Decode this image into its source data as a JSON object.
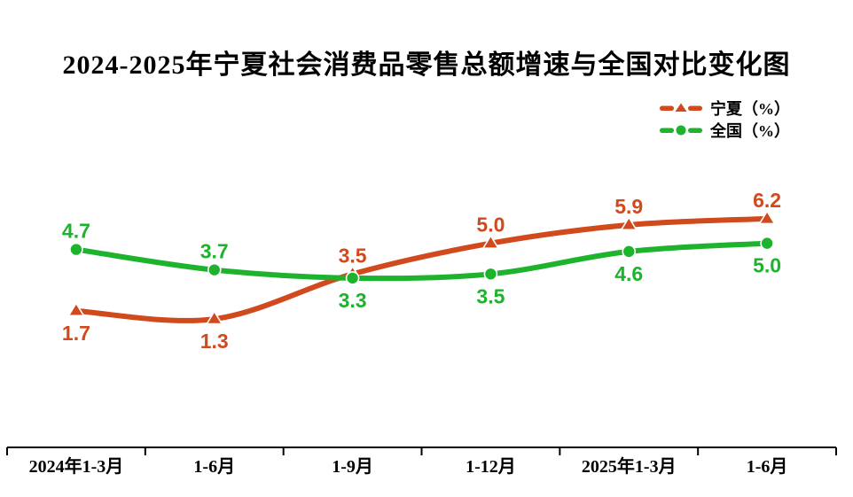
{
  "title": "2024-2025年宁夏社会消费品零售总额增速与全国对比变化图",
  "colors": {
    "title": "#000000",
    "axis": "#000000",
    "background": "#ffffff",
    "ningxia": "#d14a1d",
    "national": "#1db32d"
  },
  "chart_data": {
    "type": "line",
    "title": "2024-2025年宁夏社会消费品零售总额增速与全国对比变化图",
    "categories": [
      "2024年1-3月",
      "1-6月",
      "1-9月",
      "1-12月",
      "2025年1-3月",
      "1-6月"
    ],
    "series": [
      {
        "name": "宁夏（%）",
        "values": [
          1.7,
          1.3,
          3.5,
          5.0,
          5.9,
          6.2
        ],
        "labels": [
          "1.7",
          "1.3",
          "3.5",
          "5.0",
          "5.9",
          "6.2"
        ],
        "color": "#d14a1d",
        "marker": "triangle",
        "label_position": [
          "below",
          "below",
          "above",
          "above",
          "above",
          "above"
        ]
      },
      {
        "name": "全国（%）",
        "values": [
          4.7,
          3.7,
          3.3,
          3.5,
          4.6,
          5.0
        ],
        "labels": [
          "4.7",
          "3.7",
          "3.3",
          "3.5",
          "4.6",
          "5.0"
        ],
        "color": "#1db32d",
        "marker": "circle",
        "label_position": [
          "above",
          "above",
          "below",
          "below",
          "below",
          "below"
        ]
      }
    ],
    "xlabel": "",
    "ylabel": "",
    "ylim": [
      1.0,
      6.5
    ],
    "grid": false,
    "y_axis_visible": false,
    "legend_position": "top-right",
    "smooth": true
  }
}
